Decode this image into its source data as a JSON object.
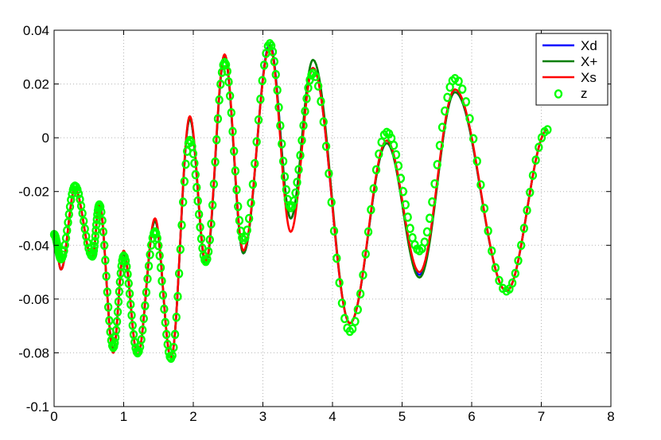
{
  "chart_data": {
    "type": "line",
    "title": "",
    "xlabel": "",
    "ylabel": "",
    "xlim": [
      0,
      8
    ],
    "ylim": [
      -0.1,
      0.04
    ],
    "xticks": [
      0,
      1,
      2,
      3,
      4,
      5,
      6,
      7,
      8
    ],
    "yticks": [
      -0.1,
      -0.08,
      -0.06,
      -0.04,
      -0.02,
      0,
      0.02,
      0.04
    ],
    "xtick_labels": [
      "0",
      "1",
      "2",
      "3",
      "4",
      "5",
      "6",
      "7",
      "8"
    ],
    "ytick_labels": [
      "-0.1",
      "-0.08",
      "-0.06",
      "-0.04",
      "-0.02",
      "0",
      "0.02",
      "0.04"
    ],
    "grid": true,
    "legend_position": "top-right",
    "series": [
      {
        "name": "Xd",
        "color": "#0000ff",
        "style": "line",
        "x": [
          0.0,
          0.1,
          0.3,
          0.55,
          0.65,
          0.85,
          1.0,
          1.2,
          1.45,
          1.68,
          1.95,
          2.18,
          2.45,
          2.72,
          3.1,
          3.4,
          3.72,
          4.25,
          4.78,
          5.25,
          5.76,
          6.5,
          7.09
        ],
        "y": [
          -0.036,
          -0.049,
          -0.019,
          -0.045,
          -0.025,
          -0.079,
          -0.043,
          -0.081,
          -0.031,
          -0.082,
          0.007,
          -0.047,
          0.03,
          -0.043,
          0.035,
          -0.03,
          0.026,
          -0.069,
          -0.002,
          -0.051,
          0.017,
          -0.057,
          0.003
        ]
      },
      {
        "name": "X+",
        "color": "#007f00",
        "style": "line",
        "x": [
          0.0,
          0.1,
          0.3,
          0.55,
          0.65,
          0.85,
          1.0,
          1.2,
          1.45,
          1.68,
          1.95,
          2.18,
          2.45,
          2.72,
          3.1,
          3.4,
          3.72,
          4.25,
          4.78,
          5.25,
          5.76,
          6.5,
          7.09
        ],
        "y": [
          -0.036,
          -0.049,
          -0.019,
          -0.045,
          -0.025,
          -0.079,
          -0.043,
          -0.081,
          -0.031,
          -0.082,
          0.007,
          -0.047,
          0.03,
          -0.043,
          0.034,
          -0.03,
          0.029,
          -0.069,
          -0.002,
          -0.052,
          0.017,
          -0.057,
          0.003
        ]
      },
      {
        "name": "Xs",
        "color": "#ff0000",
        "style": "line",
        "x": [
          0.0,
          0.1,
          0.3,
          0.55,
          0.65,
          0.85,
          1.0,
          1.2,
          1.45,
          1.68,
          1.95,
          2.18,
          2.45,
          2.72,
          3.1,
          3.4,
          3.72,
          4.25,
          4.78,
          5.25,
          5.76,
          6.5,
          7.09
        ],
        "y": [
          -0.036,
          -0.049,
          -0.019,
          -0.045,
          -0.024,
          -0.08,
          -0.042,
          -0.081,
          -0.03,
          -0.082,
          0.008,
          -0.046,
          0.031,
          -0.042,
          0.034,
          -0.035,
          0.026,
          -0.069,
          -0.001,
          -0.05,
          0.018,
          -0.057,
          0.003
        ]
      },
      {
        "name": "z",
        "color": "#00ff00",
        "style": "markers",
        "x": [
          0.0,
          0.1,
          0.3,
          0.55,
          0.65,
          0.85,
          1.0,
          1.2,
          1.45,
          1.68,
          1.95,
          2.18,
          2.45,
          2.72,
          3.1,
          3.4,
          3.72,
          4.25,
          4.78,
          5.25,
          5.76,
          6.5,
          7.09
        ],
        "y": [
          -0.036,
          -0.045,
          -0.018,
          -0.044,
          -0.025,
          -0.078,
          -0.044,
          -0.08,
          -0.035,
          -0.082,
          -0.001,
          -0.046,
          0.028,
          -0.038,
          0.035,
          -0.026,
          0.024,
          -0.072,
          0.002,
          -0.042,
          0.022,
          -0.057,
          0.003
        ]
      }
    ]
  }
}
